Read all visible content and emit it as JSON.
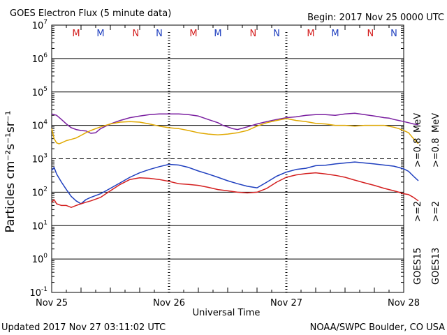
{
  "header": {
    "title": "GOES Electron Flux (5 minute data)",
    "begin": "Begin: 2017 Nov 25 0000 UTC"
  },
  "footer": {
    "updated": "Updated 2017 Nov 27 03:11:02 UTC",
    "credit": "NOAA/SWPC Boulder, CO USA"
  },
  "chart_data": {
    "type": "line",
    "title": "GOES Electron Flux (5 minute data)",
    "xlabel": "Universal Time",
    "ylabel": "Particles cm⁻²s⁻¹sr⁻¹",
    "y_scale": "log",
    "ylim": [
      0.1,
      10000000
    ],
    "xlim": [
      "2017-11-25 00:00",
      "2017-11-28 00:00"
    ],
    "x_tick_labels": [
      "Nov 25",
      "Nov 26",
      "Nov 27",
      "Nov 28"
    ],
    "y_tick_labels": [
      {
        "base": "10",
        "exp": "-1",
        "value": 0.1
      },
      {
        "base": "10",
        "exp": "0",
        "value": 1
      },
      {
        "base": "10",
        "exp": "1",
        "value": 10
      },
      {
        "base": "10",
        "exp": "2",
        "value": 100
      },
      {
        "base": "10",
        "exp": "3",
        "value": 1000
      },
      {
        "base": "10",
        "exp": "4",
        "value": 10000
      },
      {
        "base": "10",
        "exp": "5",
        "value": 100000
      },
      {
        "base": "10",
        "exp": "6",
        "value": 1000000
      },
      {
        "base": "10",
        "exp": "7",
        "value": 10000000
      }
    ],
    "threshold_dashed": 1000,
    "grid": "horizontal lines at each decade",
    "legend_position": "right, rotated",
    "legend": [
      {
        "id": "goes15",
        "text": "GOES15",
        "color": "#000000"
      },
      {
        "id": "goes13",
        "text": "GOES13",
        "color": "#000000"
      },
      {
        "id": "ge2_15",
        "text": ">=2",
        "color": "#1f3fbf"
      },
      {
        "id": "ge2_13",
        "text": ">=2",
        "color": "#d42020"
      },
      {
        "id": "ge08_15",
        "text": ">=0.8",
        "color": "#7a1fa0"
      },
      {
        "id": "ge08_13",
        "text": ">=0.8",
        "color": "#e0a800"
      },
      {
        "id": "mev1",
        "text": "MeV",
        "color": "#000000"
      },
      {
        "id": "mev2",
        "text": "MeV",
        "color": "#000000"
      }
    ],
    "top_markers": [
      {
        "text": "M",
        "color": "#d42020",
        "hour": 5.0
      },
      {
        "text": "M",
        "color": "#1f3fbf",
        "hour": 10.0
      },
      {
        "text": "N",
        "color": "#d42020",
        "hour": 17.2
      },
      {
        "text": "N",
        "color": "#1f3fbf",
        "hour": 22.0
      },
      {
        "text": "M",
        "color": "#d42020",
        "hour": 29.0
      },
      {
        "text": "M",
        "color": "#1f3fbf",
        "hour": 34.0
      },
      {
        "text": "N",
        "color": "#d42020",
        "hour": 41.2
      },
      {
        "text": "N",
        "color": "#1f3fbf",
        "hour": 46.0
      },
      {
        "text": "M",
        "color": "#d42020",
        "hour": 53.0
      },
      {
        "text": "M",
        "color": "#1f3fbf",
        "hour": 58.0
      },
      {
        "text": "N",
        "color": "#d42020",
        "hour": 65.2
      },
      {
        "text": "N",
        "color": "#1f3fbf",
        "hour": 70.0
      }
    ],
    "series": [
      {
        "name": "GOES15 >=0.8 MeV",
        "color": "#7a1fa0",
        "hours": [
          0,
          1,
          2,
          3,
          4,
          5,
          6,
          7,
          8,
          9,
          10,
          12,
          14,
          16,
          18,
          20,
          22,
          24,
          26,
          28,
          30,
          32,
          34,
          35,
          36,
          37,
          38,
          40,
          42,
          44,
          46,
          48,
          50,
          52,
          54,
          56,
          58,
          60,
          62,
          63,
          64,
          65,
          66,
          67,
          68,
          69,
          70,
          71,
          72,
          73,
          74,
          75
        ],
        "values": [
          22000,
          20000,
          15000,
          11000,
          8500,
          7500,
          7000,
          6800,
          5800,
          6000,
          8000,
          11000,
          14000,
          17000,
          19000,
          21000,
          22000,
          22000,
          22000,
          21000,
          19000,
          15000,
          12000,
          10000,
          9000,
          8000,
          7500,
          9000,
          11000,
          13000,
          15000,
          17000,
          18000,
          20000,
          21000,
          21000,
          20000,
          22000,
          23000,
          22000,
          21000,
          20000,
          19000,
          18000,
          17000,
          16500,
          15000,
          14000,
          13000,
          12000,
          11000,
          10500
        ]
      },
      {
        "name": "GOES13 >=0.8 MeV",
        "color": "#e0a800",
        "hours": [
          0,
          0.5,
          1,
          1.5,
          2,
          3,
          4,
          5,
          6,
          7,
          8,
          9,
          10,
          12,
          14,
          16,
          18,
          20,
          22,
          24,
          26,
          28,
          30,
          32,
          34,
          36,
          38,
          40,
          42,
          44,
          46,
          48,
          50,
          52,
          54,
          56,
          58,
          60,
          62,
          64,
          66,
          68,
          70,
          71,
          72,
          73,
          74,
          75
        ],
        "values": [
          8000,
          4000,
          3000,
          2800,
          3000,
          3500,
          3800,
          4200,
          5000,
          6000,
          7000,
          8000,
          9000,
          11000,
          12500,
          13000,
          12500,
          11000,
          9500,
          8500,
          8000,
          7000,
          6000,
          5500,
          5200,
          5500,
          6000,
          7000,
          9500,
          12000,
          14000,
          16000,
          14000,
          13000,
          11500,
          11000,
          10000,
          10000,
          9500,
          10000,
          10000,
          10000,
          8800,
          8000,
          7000,
          6000,
          4000,
          2800
        ]
      },
      {
        "name": "GOES15 >=2 MeV",
        "color": "#1f3fbf",
        "hours": [
          0,
          0.5,
          1,
          2,
          3,
          4,
          5,
          6,
          7,
          8,
          10,
          12,
          14,
          16,
          18,
          20,
          22,
          24,
          26,
          28,
          30,
          32,
          34,
          36,
          38,
          40,
          42,
          44,
          46,
          48,
          50,
          52,
          54,
          56,
          58,
          60,
          62,
          64,
          66,
          68,
          70,
          72,
          73,
          74,
          75
        ],
        "values": [
          450,
          550,
          350,
          200,
          120,
          75,
          55,
          45,
          60,
          70,
          90,
          130,
          190,
          280,
          380,
          480,
          580,
          680,
          650,
          550,
          430,
          350,
          280,
          220,
          180,
          150,
          135,
          200,
          300,
          400,
          480,
          520,
          620,
          640,
          700,
          750,
          800,
          750,
          700,
          650,
          600,
          500,
          420,
          300,
          220
        ]
      },
      {
        "name": "GOES13 >=2 MeV",
        "color": "#d42020",
        "hours": [
          0,
          0.5,
          1,
          2,
          3,
          4,
          5,
          6,
          7,
          8,
          10,
          12,
          14,
          16,
          18,
          20,
          22,
          24,
          26,
          28,
          30,
          32,
          34,
          36,
          38,
          40,
          42,
          44,
          46,
          48,
          50,
          52,
          54,
          56,
          58,
          60,
          62,
          64,
          66,
          68,
          70,
          71,
          72,
          73,
          74,
          75
        ],
        "values": [
          50,
          60,
          45,
          40,
          40,
          35,
          40,
          45,
          50,
          55,
          70,
          110,
          170,
          240,
          270,
          260,
          240,
          210,
          180,
          170,
          160,
          140,
          120,
          110,
          100,
          95,
          100,
          130,
          200,
          280,
          330,
          360,
          380,
          350,
          320,
          280,
          230,
          190,
          160,
          130,
          110,
          100,
          90,
          85,
          70,
          55
        ]
      }
    ]
  }
}
